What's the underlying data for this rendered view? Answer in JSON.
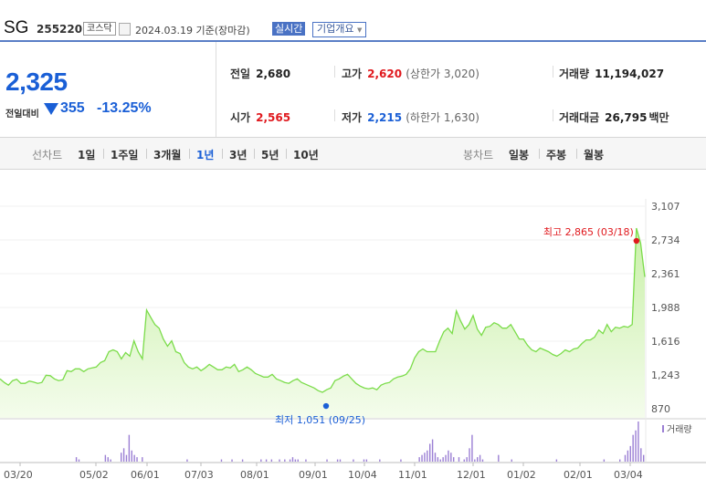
{
  "header": {
    "name": "SG",
    "code": "255220",
    "market": "코스닥",
    "date": "2024.03.19",
    "basis": "기준(장마감)",
    "realtime": "실시간",
    "company_info": "기업개요",
    "dropdown_arrow": "▼"
  },
  "summary": {
    "price": "2,325",
    "change_label": "전일대비",
    "change": "355",
    "change_pct": "-13.25%",
    "prev_close_label": "전일",
    "prev_close": "2,680",
    "high_label": "고가",
    "high": "2,620",
    "upper_limit": "(상한가 3,020)",
    "volume_label": "거래량",
    "volume": "11,194,027",
    "open_label": "시가",
    "open": "2,565",
    "low_label": "저가",
    "low": "2,215",
    "lower_limit": "(하한가 1,630)",
    "amount_label": "거래대금",
    "amount": "26,795",
    "amount_unit": "백만"
  },
  "tabs": {
    "line_label": "선차트",
    "line_periods": [
      "1일",
      "1주일",
      "3개월",
      "1년",
      "3년",
      "5년",
      "10년"
    ],
    "active_period": "1년",
    "candle_label": "봉차트",
    "candle_periods": [
      "일봉",
      "주봉",
      "월봉"
    ]
  },
  "colors": {
    "accent": "#1a5fd6",
    "up": "#e0191e",
    "down": "#1a5fd6",
    "line": "#7bdc4a",
    "fill": "#dff6c8",
    "volume": "#9b7fd4"
  },
  "chart_data": {
    "type": "area",
    "y_ticks": [
      3107,
      2734,
      2361,
      1988,
      1616,
      1243,
      870
    ],
    "ylim": [
      870,
      3107
    ],
    "x_tick_labels": [
      "03/20",
      "05/02",
      "06/01",
      "07/03",
      "08/01",
      "09/01",
      "10/04",
      "11/01",
      "12/01",
      "01/02",
      "02/01",
      "03/04"
    ],
    "annotations": {
      "max": {
        "label": "최고 2,865 (03/18)",
        "value": 2865,
        "date": "03/18"
      },
      "min": {
        "label": "최저 1,051 (09/25)",
        "value": 1051,
        "date": "09/25"
      }
    },
    "volume_label": "거래량",
    "series": [
      {
        "name": "price",
        "values": [
          1200,
          1160,
          1130,
          1180,
          1195,
          1150,
          1150,
          1175,
          1165,
          1150,
          1160,
          1240,
          1235,
          1200,
          1180,
          1190,
          1290,
          1280,
          1310,
          1310,
          1280,
          1310,
          1320,
          1330,
          1380,
          1400,
          1500,
          1520,
          1500,
          1420,
          1490,
          1450,
          1620,
          1500,
          1420,
          1960,
          1880,
          1800,
          1760,
          1640,
          1560,
          1620,
          1500,
          1480,
          1380,
          1330,
          1310,
          1330,
          1290,
          1320,
          1360,
          1330,
          1300,
          1300,
          1330,
          1320,
          1360,
          1280,
          1300,
          1330,
          1300,
          1260,
          1240,
          1220,
          1220,
          1250,
          1200,
          1180,
          1160,
          1150,
          1180,
          1200,
          1160,
          1140,
          1120,
          1100,
          1070,
          1051,
          1080,
          1100,
          1180,
          1200,
          1230,
          1250,
          1200,
          1150,
          1120,
          1100,
          1090,
          1100,
          1080,
          1130,
          1150,
          1160,
          1200,
          1220,
          1230,
          1250,
          1310,
          1430,
          1500,
          1530,
          1500,
          1500,
          1500,
          1620,
          1720,
          1760,
          1700,
          1950,
          1840,
          1750,
          1800,
          1900,
          1750,
          1680,
          1770,
          1780,
          1820,
          1800,
          1760,
          1760,
          1800,
          1720,
          1640,
          1640,
          1570,
          1520,
          1500,
          1540,
          1520,
          1500,
          1470,
          1450,
          1480,
          1520,
          1500,
          1530,
          1540,
          1590,
          1630,
          1630,
          1660,
          1740,
          1700,
          1800,
          1720,
          1770,
          1760,
          1780,
          1770,
          1800,
          2865,
          2700,
          2325
        ]
      },
      {
        "name": "volume",
        "values": [
          0,
          0,
          0,
          0,
          0,
          0,
          0,
          0,
          0,
          0,
          0,
          0,
          0,
          0,
          0,
          0,
          0,
          0,
          0,
          0,
          0,
          0,
          0,
          0,
          0,
          0,
          0,
          0,
          2,
          1,
          0,
          0,
          0,
          0,
          0,
          0,
          0,
          0,
          0,
          3,
          2,
          1,
          0,
          0,
          0,
          4,
          6,
          3,
          12,
          5,
          3,
          2,
          0,
          2,
          0,
          0,
          0,
          0,
          0,
          0,
          0,
          0,
          0,
          0,
          0,
          0,
          0,
          0,
          0,
          0,
          1,
          0,
          0,
          0,
          0,
          0,
          0,
          0,
          0,
          0,
          0,
          0,
          0,
          1,
          0,
          0,
          0,
          1,
          0,
          0,
          0,
          1,
          0,
          0,
          0,
          0,
          0,
          0,
          1,
          0,
          1,
          0,
          1,
          0,
          0,
          1,
          0,
          1,
          0,
          1,
          2,
          1,
          1,
          0,
          0,
          1,
          0,
          0,
          0,
          0,
          0,
          0,
          0,
          1,
          0,
          0,
          0,
          1,
          1,
          0,
          0,
          0,
          0,
          1,
          0,
          0,
          0,
          1,
          1,
          0,
          0,
          0,
          0,
          1,
          0,
          0,
          0,
          0,
          0,
          0,
          0,
          1,
          0,
          0,
          0,
          0,
          0,
          0,
          2,
          3,
          4,
          5,
          8,
          10,
          4,
          2,
          1,
          2,
          3,
          5,
          4,
          2,
          0,
          2,
          0,
          1,
          2,
          6,
          12,
          1,
          2,
          3,
          1,
          0,
          0,
          0,
          0,
          0,
          3,
          0,
          0,
          0,
          0,
          1,
          0,
          0,
          0,
          0,
          0,
          0,
          0,
          0,
          0,
          0,
          0,
          0,
          0,
          0,
          0,
          0,
          1,
          0,
          0,
          0,
          0,
          0,
          0,
          0,
          0,
          0,
          0,
          0,
          0,
          0,
          0,
          0,
          0,
          0,
          1,
          0,
          0,
          0,
          0,
          0,
          1,
          0,
          3,
          5,
          7,
          12,
          14,
          18,
          6,
          3
        ]
      }
    ]
  }
}
